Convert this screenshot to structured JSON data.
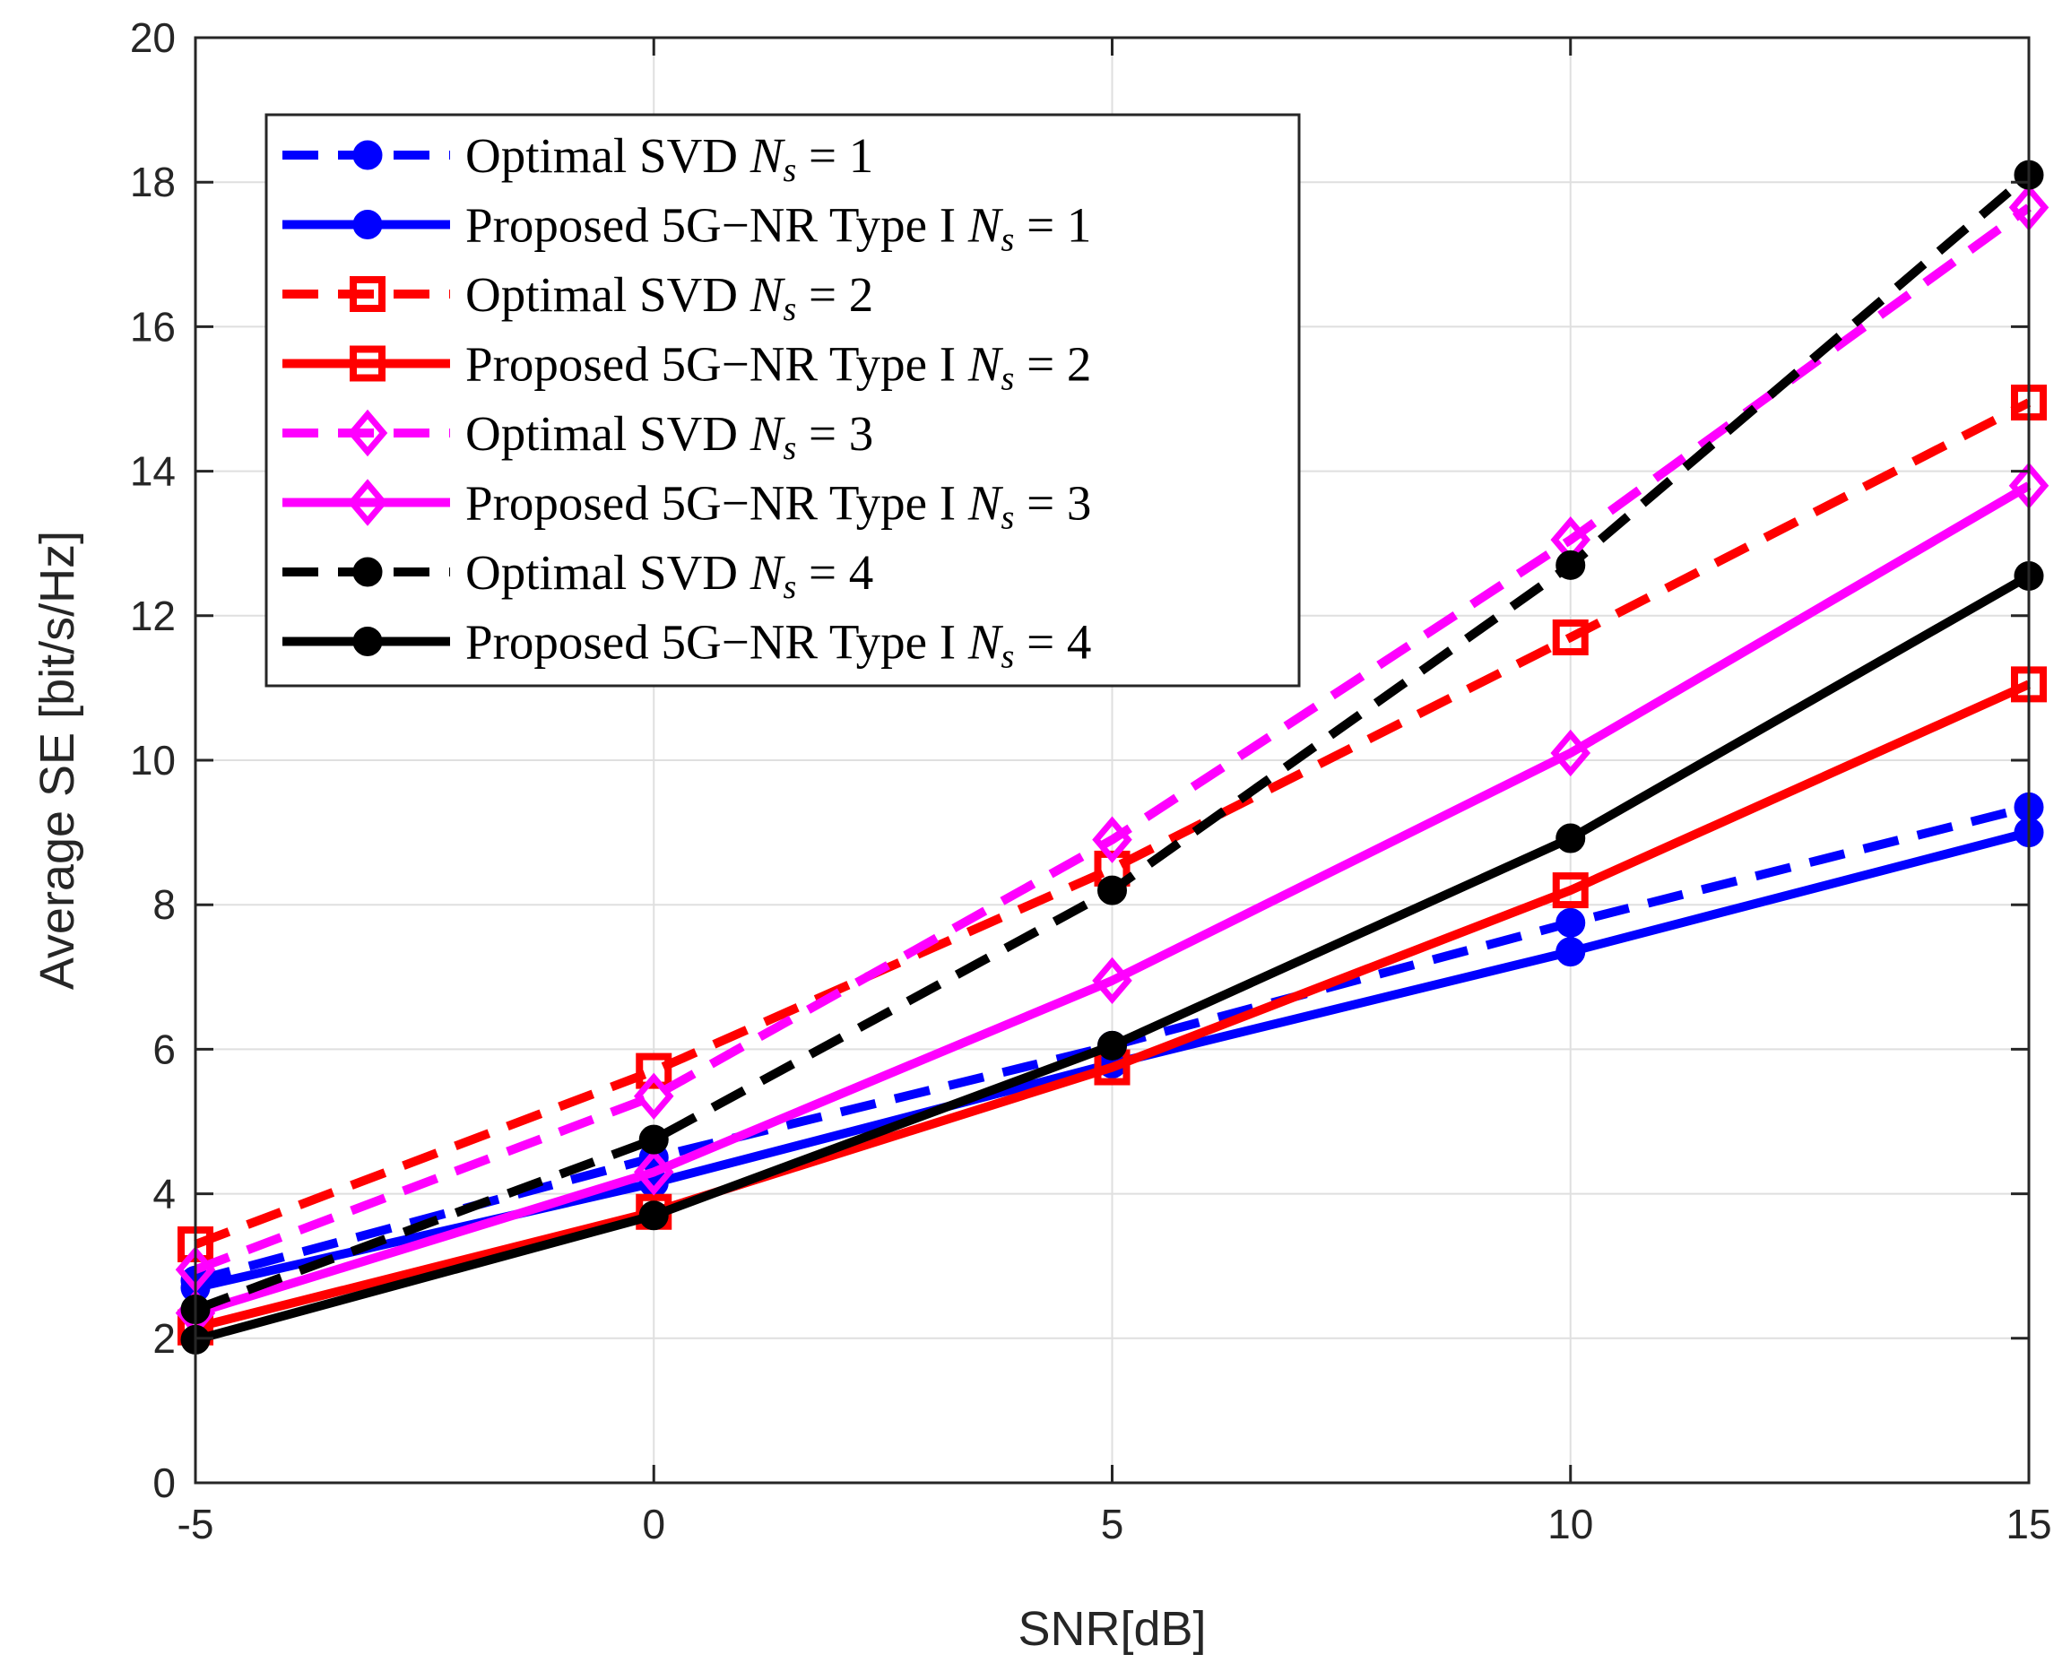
{
  "chart_data": {
    "type": "line",
    "title": "",
    "xlabel": "SNR[dB]",
    "ylabel": "Average SE [bit/s/Hz]",
    "xlim": [
      -5,
      15
    ],
    "ylim": [
      0,
      20
    ],
    "x": [
      -5,
      0,
      5,
      10,
      15
    ],
    "xticks": [
      "-5",
      "0",
      "5",
      "10",
      "15"
    ],
    "yticks": [
      "0",
      "2",
      "4",
      "6",
      "8",
      "10",
      "12",
      "14",
      "16",
      "18",
      "20"
    ],
    "grid": true,
    "legend_position": "top-left",
    "series": [
      {
        "name": "Optimal SVD N_s = 1",
        "label_prefix": "Optimal SVD",
        "ns_value": "1",
        "color": "#0000ff",
        "dash": "dashed",
        "marker": "circle",
        "values": [
          2.8,
          4.5,
          6.05,
          7.75,
          9.35
        ]
      },
      {
        "name": "Proposed 5G−NR Type I N_s = 1",
        "label_prefix": "Proposed 5G−NR Type I",
        "ns_value": "1",
        "color": "#0000ff",
        "dash": "solid",
        "marker": "circle",
        "values": [
          2.7,
          4.15,
          5.8,
          7.35,
          9.0
        ]
      },
      {
        "name": "Optimal SVD N_s = 2",
        "label_prefix": "Optimal SVD",
        "ns_value": "2",
        "color": "#ff0000",
        "dash": "dashed",
        "marker": "square",
        "values": [
          3.3,
          5.7,
          8.5,
          11.7,
          14.95
        ]
      },
      {
        "name": "Proposed 5G−NR Type I N_s = 2",
        "label_prefix": "Proposed 5G−NR Type I",
        "ns_value": "2",
        "color": "#ff0000",
        "dash": "solid",
        "marker": "square",
        "values": [
          2.15,
          3.75,
          5.75,
          8.2,
          11.05
        ]
      },
      {
        "name": "Optimal SVD N_s = 3",
        "label_prefix": "Optimal SVD",
        "ns_value": "3",
        "color": "#ff00ff",
        "dash": "dashed",
        "marker": "diamond",
        "values": [
          2.95,
          5.35,
          8.9,
          13.05,
          17.65
        ]
      },
      {
        "name": "Proposed 5G−NR Type I N_s = 3",
        "label_prefix": "Proposed 5G−NR Type I",
        "ns_value": "3",
        "color": "#ff00ff",
        "dash": "solid",
        "marker": "diamond",
        "values": [
          2.35,
          4.3,
          6.95,
          10.1,
          13.8
        ]
      },
      {
        "name": "Optimal SVD N_s = 4",
        "label_prefix": "Optimal SVD",
        "ns_value": "4",
        "color": "#000000",
        "dash": "dashed",
        "marker": "circle",
        "values": [
          2.4,
          4.75,
          8.2,
          12.7,
          18.1
        ]
      },
      {
        "name": "Proposed 5G−NR Type I N_s = 4",
        "label_prefix": "Proposed 5G−NR Type I",
        "ns_value": "4",
        "color": "#000000",
        "dash": "solid",
        "marker": "circle",
        "values": [
          1.98,
          3.7,
          6.05,
          8.92,
          12.55
        ]
      }
    ]
  }
}
